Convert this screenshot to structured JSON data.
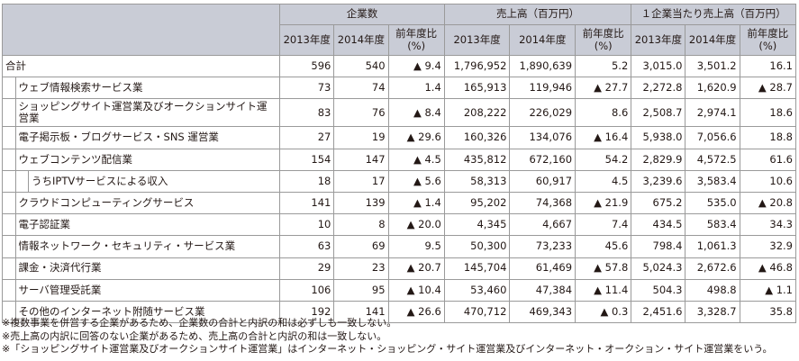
{
  "header": {
    "group_count": "企業数",
    "group_sales": "売上高（百万円）",
    "group_per": "１企業当たり売上高（百万円）",
    "y2013": "2013年度",
    "y2014": "2014年度",
    "yoy_line1": "前年度比",
    "yoy_line2": "(%)"
  },
  "rows": [
    {
      "label": "合計",
      "c13": "596",
      "c14": "540",
      "cy": "▲ 9.4",
      "s13": "1,796,952",
      "s14": "1,890,639",
      "sy": "5.2",
      "p13": "3,015.0",
      "p14": "3,501.2",
      "py": "16.1"
    },
    {
      "label": "ウェブ情報検索サービス業",
      "c13": "73",
      "c14": "74",
      "cy": "1.4",
      "s13": "165,913",
      "s14": "119,946",
      "sy": "▲ 27.7",
      "p13": "2,272.8",
      "p14": "1,620.9",
      "py": "▲ 28.7"
    },
    {
      "label": "ショッピングサイト運営業及びオークションサイト運営業",
      "label1": "ショッピングサイト運営業及びオークションサイト運",
      "label2": "営業",
      "c13": "83",
      "c14": "76",
      "cy": "▲ 8.4",
      "s13": "208,222",
      "s14": "226,029",
      "sy": "8.6",
      "p13": "2,508.7",
      "p14": "2,974.1",
      "py": "18.6"
    },
    {
      "label": "電子掲示板・ブログサービス・SNS 運営業",
      "c13": "27",
      "c14": "19",
      "cy": "▲ 29.6",
      "s13": "160,326",
      "s14": "134,076",
      "sy": "▲ 16.4",
      "p13": "5,938.0",
      "p14": "7,056.6",
      "py": "18.8"
    },
    {
      "label": "ウェブコンテンツ配信業",
      "c13": "154",
      "c14": "147",
      "cy": "▲ 4.5",
      "s13": "435,812",
      "s14": "672,160",
      "sy": "54.2",
      "p13": "2,829.9",
      "p14": "4,572.5",
      "py": "61.6"
    },
    {
      "label": "うちIPTVサービスによる収入",
      "c13": "18",
      "c14": "17",
      "cy": "▲ 5.6",
      "s13": "58,313",
      "s14": "60,917",
      "sy": "4.5",
      "p13": "3,239.6",
      "p14": "3,583.4",
      "py": "10.6"
    },
    {
      "label": "クラウドコンピューティングサービス",
      "c13": "141",
      "c14": "139",
      "cy": "▲ 1.4",
      "s13": "95,202",
      "s14": "74,368",
      "sy": "▲ 21.9",
      "p13": "675.2",
      "p14": "535.0",
      "py": "▲ 20.8"
    },
    {
      "label": "電子認証業",
      "c13": "10",
      "c14": "8",
      "cy": "▲ 20.0",
      "s13": "4,345",
      "s14": "4,667",
      "sy": "7.4",
      "p13": "434.5",
      "p14": "583.4",
      "py": "34.3"
    },
    {
      "label": "情報ネットワーク・セキュリティ・サービス業",
      "c13": "63",
      "c14": "69",
      "cy": "9.5",
      "s13": "50,300",
      "s14": "73,233",
      "sy": "45.6",
      "p13": "798.4",
      "p14": "1,061.3",
      "py": "32.9"
    },
    {
      "label": "課金・決済代行業",
      "c13": "29",
      "c14": "23",
      "cy": "▲ 20.7",
      "s13": "145,704",
      "s14": "61,469",
      "sy": "▲ 57.8",
      "p13": "5,024.3",
      "p14": "2,672.6",
      "py": "▲ 46.8"
    },
    {
      "label": "サーバ管理受託業",
      "c13": "106",
      "c14": "95",
      "cy": "▲ 10.4",
      "s13": "53,460",
      "s14": "47,384",
      "sy": "▲ 11.4",
      "p13": "504.3",
      "p14": "498.8",
      "py": "▲ 1.1"
    },
    {
      "label": "その他のインターネット附随サービス業",
      "c13": "192",
      "c14": "141",
      "cy": "▲ 26.6",
      "s13": "470,712",
      "s14": "469,343",
      "sy": "▲ 0.3",
      "p13": "2,451.6",
      "p14": "3,328.7",
      "py": "35.8"
    }
  ],
  "notes": [
    "※複数事業を併営する企業があるため、企業数の合計と内訳の和は必ずしも一致しない。",
    "※売上高の内訳に回答のない企業があるため、売上高の合計と内訳の和は一致しない。",
    "※「ショッピングサイト運営業及びオークションサイト運営業」はインターネット・ショッピング・サイト運営業及びインターネット・オークション・サイト運営業をいう。"
  ]
}
